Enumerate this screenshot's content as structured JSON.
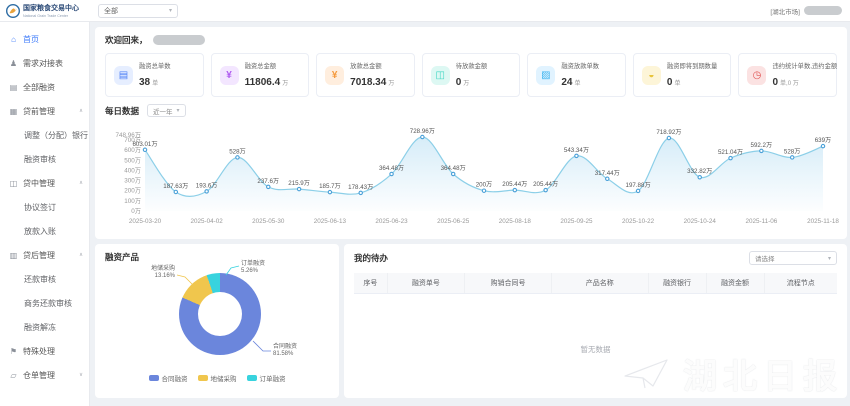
{
  "header": {
    "brand": {
      "name": "国家粮食交易中心",
      "sub": "National Grain Trade Center"
    },
    "market_select": {
      "value": "全部"
    },
    "user_area": {
      "market_tag": "[湖北市场]"
    }
  },
  "sidebar": {
    "items": [
      {
        "label": "首页",
        "icon": "home-icon",
        "type": "item",
        "active": true
      },
      {
        "label": "需求对接表",
        "icon": "user-icon",
        "type": "item"
      },
      {
        "label": "全部融资",
        "icon": "doc-icon",
        "type": "item"
      },
      {
        "label": "贷前管理",
        "icon": "briefcase-icon",
        "type": "group",
        "expanded": true
      },
      {
        "label": "调整（分配）银行",
        "type": "child"
      },
      {
        "label": "融资审核",
        "type": "child"
      },
      {
        "label": "贷中管理",
        "icon": "layers-icon",
        "type": "group",
        "expanded": true
      },
      {
        "label": "协议签订",
        "type": "child"
      },
      {
        "label": "放款入账",
        "type": "child"
      },
      {
        "label": "贷后管理",
        "icon": "bank-icon",
        "type": "group",
        "expanded": true
      },
      {
        "label": "还款审核",
        "type": "child"
      },
      {
        "label": "商务还款审核",
        "type": "child"
      },
      {
        "label": "融资解冻",
        "type": "child"
      },
      {
        "label": "特殊处理",
        "icon": "pin-icon",
        "type": "item"
      },
      {
        "label": "仓单管理",
        "icon": "folder-icon",
        "type": "group",
        "expanded": false
      }
    ]
  },
  "welcome": {
    "prefix": "欢迎回来，"
  },
  "stats": [
    {
      "label": "融资总单数",
      "value": "38",
      "unit": "单",
      "icon": "doc-icon",
      "icon_bg": "#e6eeff",
      "icon_color": "#4a7df5"
    },
    {
      "label": "融资总金额",
      "value": "11806.4",
      "unit": "万",
      "icon": "money-icon",
      "icon_bg": "#f3e6ff",
      "icon_color": "#b05cf0"
    },
    {
      "label": "放款总金额",
      "value": "7018.34",
      "unit": "万",
      "icon": "coin-icon",
      "icon_bg": "#ffeede",
      "icon_color": "#f59a3e"
    },
    {
      "label": "待放款金额",
      "value": "0",
      "unit": "万",
      "icon": "wallet-icon",
      "icon_bg": "#ddf8f3",
      "icon_color": "#3ed6c3"
    },
    {
      "label": "融资放款单数",
      "value": "24",
      "unit": "单",
      "icon": "card-icon",
      "icon_bg": "#e1f3ff",
      "icon_color": "#41b6f0"
    },
    {
      "label": "融资即将到期数量",
      "value": "0",
      "unit": "单",
      "icon": "hourglass-icon",
      "icon_bg": "#fdf5d8",
      "icon_color": "#e8c43a"
    },
    {
      "label": "违约统计单数,违约金额",
      "value": "0",
      "unit": "单,0 万",
      "icon": "clock-icon",
      "icon_bg": "#fbe2e2",
      "icon_color": "#e05252"
    }
  ],
  "daily": {
    "title": "每日数据",
    "range_select": "近一年"
  },
  "products": {
    "title": "融资产品"
  },
  "todo": {
    "title": "我的待办",
    "select_placeholder": "请选择",
    "columns": [
      "序号",
      "融资单号",
      "购销合同号",
      "产品名称",
      "融资银行",
      "融资金额",
      "流程节点"
    ],
    "empty_text": "暂无数据"
  },
  "watermark": {
    "text": "湖北日报"
  },
  "colors": {
    "accent": "#3e7bfa",
    "line": "#8ccfe8",
    "line_fill": "#cfe9f7",
    "point": "#4aa0d8"
  },
  "chart_data": [
    {
      "type": "area",
      "title": "每日数据",
      "range": "近一年",
      "x_ticks": [
        "2025-03-20",
        "2025-04-02",
        "2025-05-30",
        "2025-06-13",
        "2025-06-23",
        "2025-06-25",
        "2025-08-18",
        "2025-09-25",
        "2025-10-22",
        "2025-10-24",
        "2025-11-06",
        "2025-11-18"
      ],
      "values": [
        603.01,
        187.63,
        193.6,
        528,
        237.6,
        215.9,
        185.7,
        178.43,
        364.48,
        728.96,
        364.48,
        200,
        205.44,
        205.44,
        543.34,
        317.44,
        197.88,
        718.92,
        332.82,
        521.04,
        592.2,
        528,
        639
      ],
      "point_labels": [
        "603.01万",
        "187.63万",
        "193.6万",
        "528万",
        "237.6万",
        "215.9万",
        "185.7万",
        "178.43万",
        "364.48万",
        "728.96万",
        "364.48万",
        "200万",
        "205.44万",
        "205.44万",
        "543.34万",
        "317.44万",
        "197.88万",
        "718.92万",
        "332.82万",
        "521.04万",
        "592.2万",
        "528万",
        "639万"
      ],
      "y_tick_values": [
        748.96,
        700,
        600,
        500,
        400,
        300,
        200,
        100,
        0
      ],
      "y_tick_labels": [
        "748.96万",
        "700万",
        "600万",
        "500万",
        "400万",
        "300万",
        "200万",
        "100万",
        "0万"
      ],
      "ylim": [
        0,
        748.96
      ],
      "unit": "万",
      "grid": false,
      "legend_position": "none"
    },
    {
      "type": "pie",
      "title": "融资产品",
      "slices": [
        {
          "name": "合同融资",
          "pct": 81.58,
          "color": "#6b86dc",
          "label": "合同融资 81.58%"
        },
        {
          "name": "地储采购",
          "pct": 13.16,
          "color": "#f0c64d",
          "label": "地储采购 13.16%"
        },
        {
          "name": "订单融资",
          "pct": 5.26,
          "color": "#38d3de",
          "label": "订单融资 5.26%"
        }
      ],
      "legend": [
        "合同融资",
        "地储采购",
        "订单融资"
      ],
      "legend_position": "bottom"
    }
  ]
}
